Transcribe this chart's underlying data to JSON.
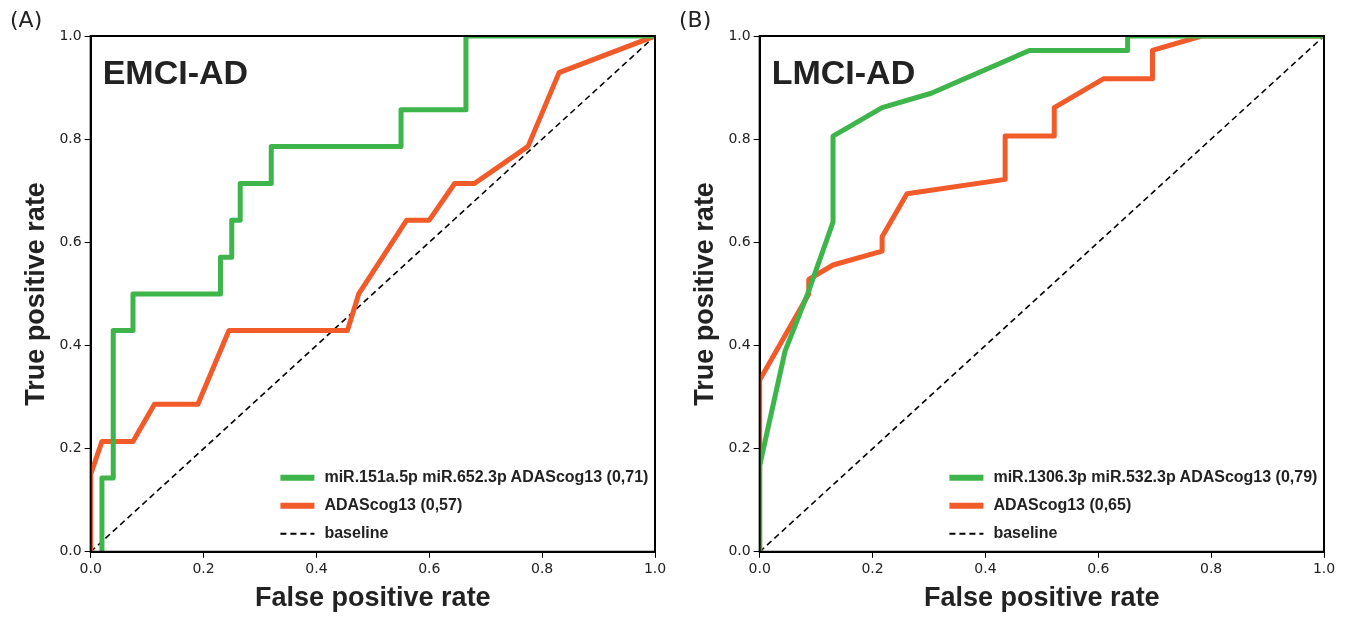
{
  "chart_data": [
    {
      "type": "line",
      "title": "EMCI-AD",
      "xlabel": "False positive rate",
      "ylabel": "True positive rate",
      "annotations": [
        "(A)"
      ],
      "xlim": [
        0,
        1
      ],
      "ylim": [
        0,
        1
      ],
      "xticks": [
        {
          "value": 0,
          "label": "0.0"
        },
        {
          "value": 0.2,
          "label": "0.2"
        },
        {
          "value": 0.4,
          "label": "0.4"
        },
        {
          "value": 0.6,
          "label": "0.6"
        },
        {
          "value": 0.8,
          "label": "0.8"
        },
        {
          "value": 1,
          "label": "1.0"
        }
      ],
      "yticks": [
        {
          "value": 0,
          "label": "0.0"
        },
        {
          "value": 0.2,
          "label": "0.2"
        },
        {
          "value": 0.4,
          "label": "0.4"
        },
        {
          "value": 0.6,
          "label": "0.6"
        },
        {
          "value": 0.8,
          "label": "0.8"
        },
        {
          "value": 1,
          "label": "1.0"
        }
      ],
      "grid": false,
      "legend": "bottom right",
      "marker": "none",
      "line_style": "solid",
      "series": [
        {
          "name": "miR.151a.5p miR.652.3p ADAScog13 (0,71)",
          "color": "#3db54a",
          "x": [
            0.02,
            0.02,
            0.04,
            0.04,
            0.075,
            0.075,
            0.23,
            0.23,
            0.25,
            0.25,
            0.265,
            0.265,
            0.32,
            0.32,
            0.55,
            0.55,
            0.665,
            0.665,
            1
          ],
          "values": [
            0,
            0.143,
            0.143,
            0.429,
            0.429,
            0.5,
            0.5,
            0.571,
            0.571,
            0.643,
            0.643,
            0.714,
            0.714,
            0.786,
            0.786,
            0.857,
            0.857,
            1,
            1
          ]
        },
        {
          "name": "ADAScog13 (0,57)",
          "color": "#f15a29",
          "x": [
            0,
            0,
            0.02,
            0.075,
            0.113,
            0.19,
            0.245,
            0.455,
            0.475,
            0.56,
            0.6,
            0.645,
            0.68,
            0.775,
            0.83,
            1
          ],
          "values": [
            0,
            0.15,
            0.214,
            0.214,
            0.286,
            0.286,
            0.429,
            0.429,
            0.5,
            0.643,
            0.643,
            0.714,
            0.714,
            0.786,
            0.929,
            1
          ]
        },
        {
          "name": "baseline",
          "color": "#000000",
          "line_style": "dashed",
          "x": [
            0,
            1
          ],
          "values": [
            0,
            1
          ]
        }
      ]
    },
    {
      "type": "line",
      "title": "LMCI-AD",
      "xlabel": "False positive rate",
      "ylabel": "True positive rate",
      "annotations": [
        "(B)"
      ],
      "xlim": [
        0,
        1
      ],
      "ylim": [
        0,
        1
      ],
      "xticks": [
        {
          "value": 0,
          "label": "0.0"
        },
        {
          "value": 0.2,
          "label": "0.2"
        },
        {
          "value": 0.4,
          "label": "0.4"
        },
        {
          "value": 0.6,
          "label": "0.6"
        },
        {
          "value": 0.8,
          "label": "0.8"
        },
        {
          "value": 1,
          "label": "1.0"
        }
      ],
      "yticks": [
        {
          "value": 0,
          "label": "0.0"
        },
        {
          "value": 0.2,
          "label": "0.2"
        },
        {
          "value": 0.4,
          "label": "0.4"
        },
        {
          "value": 0.6,
          "label": "0.6"
        },
        {
          "value": 0.8,
          "label": "0.8"
        },
        {
          "value": 1,
          "label": "1.0"
        }
      ],
      "grid": false,
      "legend": "bottom right",
      "marker": "none",
      "line_style": "solid",
      "series": [
        {
          "name": "miR.1306.3p miR.532.3p ADAScog13 (0,79)",
          "color": "#3db54a",
          "x": [
            0,
            0,
            0.045,
            0.085,
            0.13,
            0.13,
            0.217,
            0.304,
            0.478,
            0.652,
            0.652,
            1
          ],
          "values": [
            0,
            0.167,
            0.389,
            0.5,
            0.639,
            0.806,
            0.861,
            0.889,
            0.972,
            0.972,
            1,
            1
          ]
        },
        {
          "name": "ADAScog13 (0,65)",
          "color": "#f15a29",
          "x": [
            0,
            0,
            0.087,
            0.087,
            0.13,
            0.217,
            0.217,
            0.261,
            0.435,
            0.435,
            0.522,
            0.522,
            0.609,
            0.696,
            0.696,
            0.783,
            1
          ],
          "values": [
            0,
            0.333,
            0.5,
            0.528,
            0.556,
            0.583,
            0.611,
            0.694,
            0.722,
            0.806,
            0.806,
            0.861,
            0.917,
            0.917,
            0.972,
            1,
            1
          ]
        },
        {
          "name": "baseline",
          "color": "#000000",
          "line_style": "dashed",
          "x": [
            0,
            1
          ],
          "values": [
            0,
            1
          ]
        }
      ]
    }
  ]
}
